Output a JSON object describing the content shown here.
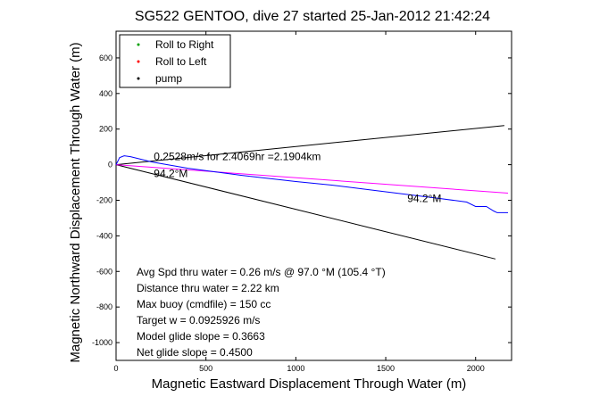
{
  "chart_data": {
    "type": "line",
    "title": "SG522 GENTOO, dive 27 started 25-Jan-2012 21:42:24",
    "xlabel": "Magnetic Eastward Displacement Through Water (m)",
    "ylabel": "Magnetic Northward Displacement Through Water (m)",
    "xlim": [
      0,
      2200
    ],
    "ylim": [
      -1100,
      750
    ],
    "xticks": [
      0,
      500,
      1000,
      1500,
      2000
    ],
    "yticks": [
      -1000,
      -800,
      -600,
      -400,
      -200,
      0,
      200,
      400,
      600
    ],
    "grid": false,
    "legend": {
      "placement": "top-left",
      "entries": [
        {
          "label": "Roll to Right",
          "color": "#00a000",
          "marker": "."
        },
        {
          "label": "Roll to Left",
          "color": "#ff0000",
          "marker": "."
        },
        {
          "label": "pump",
          "color": "#000000",
          "marker": "."
        }
      ]
    },
    "series": [
      {
        "color": "#000000",
        "x": [
          0,
          2160
        ],
        "y": [
          0,
          220
        ]
      },
      {
        "color": "#000000",
        "x": [
          0,
          2110
        ],
        "y": [
          0,
          -530
        ]
      },
      {
        "color": "#ff00ff",
        "x": [
          0,
          2180
        ],
        "y": [
          0,
          -160
        ]
      },
      {
        "color": "#0000ff",
        "x": [
          0,
          20,
          45,
          80,
          120,
          200,
          400,
          700,
          1000,
          1200,
          1400,
          1600,
          1800,
          1950,
          2000,
          2060,
          2100,
          2120,
          2180
        ],
        "y": [
          0,
          40,
          50,
          45,
          35,
          15,
          -20,
          -60,
          -95,
          -115,
          -140,
          -165,
          -190,
          -210,
          -235,
          -235,
          -260,
          -270,
          -270
        ]
      }
    ],
    "annotations": [
      {
        "text": "0.2528m/s for 2.4069hr =2.1904km",
        "x": 210,
        "y": 25
      },
      {
        "text": "94.2°M",
        "x": 210,
        "y": -70
      },
      {
        "text": "94.2°M",
        "x": 1620,
        "y": -210
      }
    ],
    "stats": [
      "Avg Spd thru water =  0.26 m/s @  97.0    °M (105.4 °T)",
      "Distance thru water =  2.22 km",
      "Max buoy (cmdfile) = 150 cc",
      "Target w = 0.0925926 m/s",
      "Model glide slope = 0.3663",
      "Net glide slope = 0.4500"
    ]
  }
}
